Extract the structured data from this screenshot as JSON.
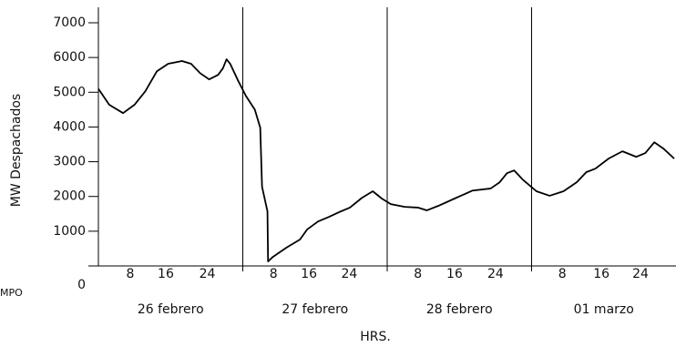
{
  "chart_data": {
    "type": "line",
    "ylabel": "MW Despachados",
    "xlabel": "HRS.",
    "side_label": "MPO",
    "days": [
      "26 febrero",
      "27 febrero",
      "28 febrero",
      "01 marzo"
    ],
    "xlim": [
      0,
      96
    ],
    "ylim": [
      0,
      7000
    ],
    "yticks": [
      0,
      1000,
      2000,
      3000,
      4000,
      5000,
      6000,
      7000
    ],
    "xticks": [
      {
        "value": 5.3,
        "label": "8"
      },
      {
        "value": 11.2,
        "label": "16"
      },
      {
        "value": 18.1,
        "label": "24"
      },
      {
        "value": 29.1,
        "label": "8"
      },
      {
        "value": 35.0,
        "label": "16"
      },
      {
        "value": 41.7,
        "label": "24"
      },
      {
        "value": 53.1,
        "label": "8"
      },
      {
        "value": 59.2,
        "label": "16"
      },
      {
        "value": 66.0,
        "label": "24"
      },
      {
        "value": 77.1,
        "label": "8"
      },
      {
        "value": 83.6,
        "label": "16"
      },
      {
        "value": 90.1,
        "label": "24"
      }
    ],
    "day_boundaries": [
      24,
      48,
      72
    ],
    "series": [
      {
        "color": "#000000",
        "x": [
          0,
          1.8,
          4.1,
          6.0,
          7.8,
          9.7,
          11.6,
          13.9,
          15.4,
          16.9,
          18.4,
          19.9,
          20.7,
          21.3,
          21.9,
          23.2,
          24.5,
          26.0,
          26.9,
          27.2,
          28.1,
          28.2,
          29.0,
          31.2,
          33.5,
          34.7,
          36.5,
          38.3,
          40.3,
          41.8,
          43.8,
          45.6,
          47.1,
          48.6,
          50.9,
          53.1,
          54.6,
          56.5,
          59.2,
          62.2,
          65.2,
          66.7,
          67.9,
          69.1,
          70.5,
          72.8,
          75.0,
          77.3,
          79.5,
          81.1,
          82.6,
          84.8,
          87.1,
          89.4,
          90.9,
          92.4,
          93.9,
          95.7
        ],
        "values": [
          5100,
          4640,
          4400,
          4640,
          5030,
          5600,
          5820,
          5900,
          5820,
          5550,
          5370,
          5500,
          5690,
          5950,
          5820,
          5340,
          4900,
          4500,
          3980,
          2280,
          1570,
          130,
          260,
          520,
          760,
          1050,
          1280,
          1410,
          1570,
          1680,
          1960,
          2150,
          1940,
          1780,
          1700,
          1680,
          1600,
          1730,
          1940,
          2170,
          2230,
          2410,
          2670,
          2750,
          2490,
          2150,
          2020,
          2150,
          2410,
          2700,
          2800,
          3090,
          3300,
          3140,
          3250,
          3560,
          3380,
          3090
        ]
      }
    ]
  }
}
